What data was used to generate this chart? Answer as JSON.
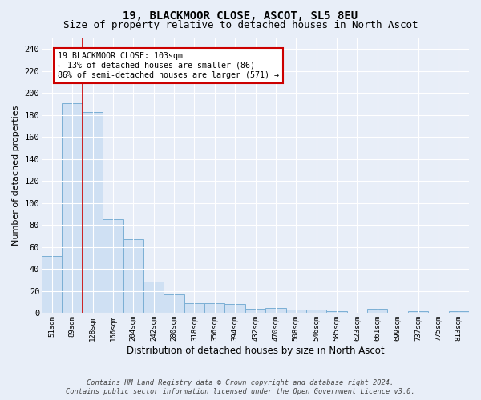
{
  "title1": "19, BLACKMOOR CLOSE, ASCOT, SL5 8EU",
  "title2": "Size of property relative to detached houses in North Ascot",
  "xlabel": "Distribution of detached houses by size in North Ascot",
  "ylabel": "Number of detached properties",
  "bar_labels": [
    "51sqm",
    "89sqm",
    "128sqm",
    "166sqm",
    "204sqm",
    "242sqm",
    "280sqm",
    "318sqm",
    "356sqm",
    "394sqm",
    "432sqm",
    "470sqm",
    "508sqm",
    "546sqm",
    "585sqm",
    "623sqm",
    "661sqm",
    "699sqm",
    "737sqm",
    "775sqm",
    "813sqm"
  ],
  "bar_values": [
    52,
    191,
    183,
    85,
    67,
    29,
    17,
    9,
    9,
    8,
    4,
    5,
    3,
    3,
    2,
    0,
    4,
    0,
    2,
    0,
    2
  ],
  "bar_color": "#cfe0f3",
  "bar_edge_color": "#7bafd4",
  "annotation_text": "19 BLACKMOOR CLOSE: 103sqm\n← 13% of detached houses are smaller (86)\n86% of semi-detached houses are larger (571) →",
  "annotation_box_color": "#ffffff",
  "annotation_box_edge": "#cc0000",
  "vline_color": "#cc0000",
  "footer1": "Contains HM Land Registry data © Crown copyright and database right 2024.",
  "footer2": "Contains public sector information licensed under the Open Government Licence v3.0.",
  "bg_color": "#e8eef8",
  "plot_bg_color": "#e8eef8",
  "ylim": [
    0,
    250
  ],
  "yticks": [
    0,
    20,
    40,
    60,
    80,
    100,
    120,
    140,
    160,
    180,
    200,
    220,
    240
  ],
  "grid_color": "#ffffff",
  "title1_fontsize": 10,
  "title2_fontsize": 9
}
